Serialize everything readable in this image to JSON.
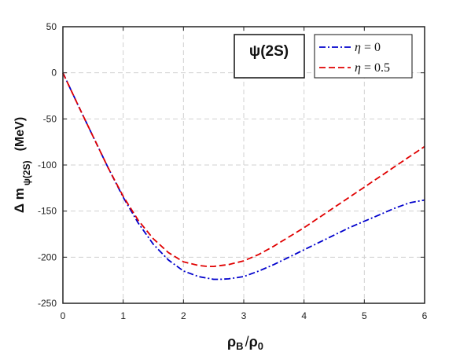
{
  "chart_data": {
    "type": "line",
    "title": "ψ(2S)",
    "xlabel": {
      "main": "ρ",
      "sub1": "B",
      "slash": "/",
      "main2": "ρ",
      "sub2": "0"
    },
    "ylabel": {
      "delta": "Δ m",
      "sub": "ψ(2S)",
      "unit": "(MeV)"
    },
    "xlim": [
      0,
      6
    ],
    "ylim": [
      -250,
      50
    ],
    "xticks": [
      0,
      1,
      2,
      3,
      4,
      5,
      6
    ],
    "yticks": [
      50,
      0,
      -50,
      -100,
      -150,
      -200,
      -250
    ],
    "grid": true,
    "legend_position": "top-right",
    "series": [
      {
        "name": "η = 0",
        "legend": {
          "sym": "η",
          "rest": " = 0"
        },
        "color": "#0000cc",
        "style": "dash-dot",
        "x": [
          0,
          0.25,
          0.5,
          0.75,
          1.0,
          1.25,
          1.5,
          1.75,
          2.0,
          2.25,
          2.5,
          2.6,
          2.75,
          3.0,
          3.25,
          3.5,
          3.75,
          4.0,
          4.25,
          4.5,
          4.75,
          5.0,
          5.25,
          5.5,
          5.75,
          6.0
        ],
        "y": [
          0,
          -35,
          -69,
          -103,
          -135,
          -163,
          -186,
          -203,
          -215,
          -221,
          -224,
          -224,
          -223.5,
          -221,
          -215,
          -208,
          -200,
          -192,
          -184,
          -176,
          -168,
          -161,
          -154,
          -147,
          -141,
          -138
        ]
      },
      {
        "name": "η = 0.5",
        "legend": {
          "sym": "η",
          "rest": " = 0.5"
        },
        "color": "#e00000",
        "style": "dashed",
        "x": [
          0,
          0.25,
          0.5,
          0.75,
          1.0,
          1.25,
          1.5,
          1.75,
          2.0,
          2.25,
          2.4,
          2.5,
          2.75,
          3.0,
          3.25,
          3.5,
          3.75,
          4.0,
          4.25,
          4.5,
          4.75,
          5.0,
          5.25,
          5.5,
          5.75,
          6.0
        ],
        "y": [
          0,
          -35,
          -69,
          -103,
          -134,
          -160,
          -180,
          -195,
          -205,
          -209,
          -210,
          -210,
          -208,
          -204,
          -197,
          -188,
          -178,
          -168,
          -157,
          -146,
          -135,
          -124,
          -113,
          -102,
          -91,
          -80
        ]
      }
    ]
  }
}
